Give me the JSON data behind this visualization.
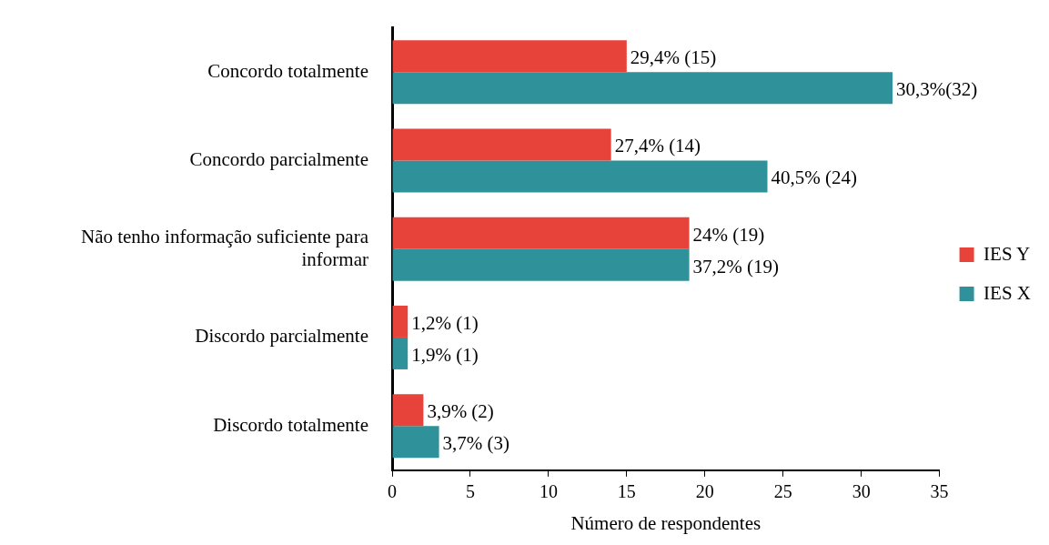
{
  "chart_data": {
    "type": "bar",
    "orientation": "horizontal",
    "xlabel": "Número de respondentes",
    "categories": [
      "Concordo totalmente",
      "Concordo parcialmente",
      "Não tenho informação suficiente para informar",
      "Discordo parcialmente",
      "Discordo totalmente"
    ],
    "series": [
      {
        "name": "IES Y",
        "color": "#e8433a",
        "values": [
          15,
          14,
          19,
          1,
          2
        ],
        "value_labels": [
          "29,4% (15)",
          "27,4% (14)",
          "24% (19)",
          "1,2% (1)",
          "3,9% (2)"
        ]
      },
      {
        "name": "IES X",
        "color": "#2f9199",
        "values": [
          32,
          24,
          19,
          1,
          3
        ],
        "value_labels": [
          "30,3%(32)",
          "40,5% (24)",
          "37,2% (19)",
          "1,9% (1)",
          "3,7% (3)"
        ]
      }
    ],
    "xlim": [
      0,
      35
    ],
    "xticks": [
      0,
      5,
      10,
      15,
      20,
      25,
      30,
      35
    ],
    "grid": false,
    "legend": "right"
  }
}
